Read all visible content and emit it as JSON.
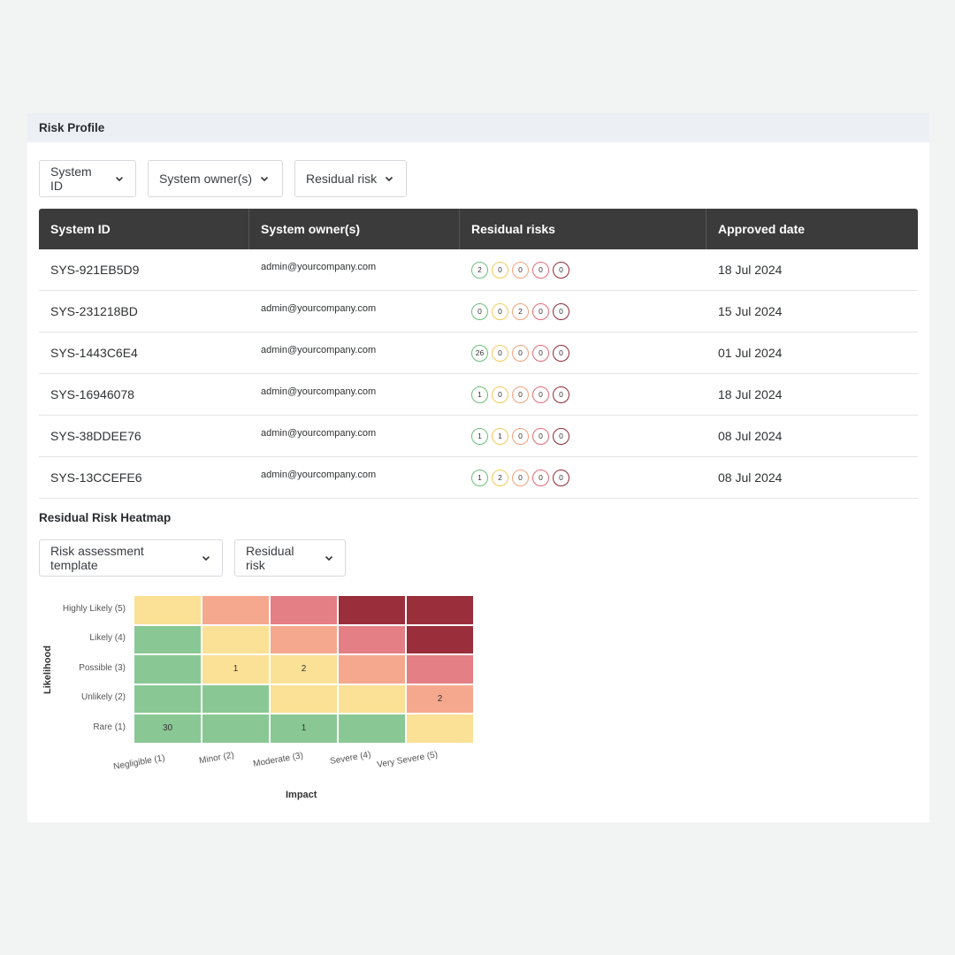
{
  "header": {
    "title": "Risk Profile"
  },
  "filters": [
    "System ID",
    "System owner(s)",
    "Residual risk"
  ],
  "table": {
    "columns": [
      "System ID",
      "System owner(s)",
      "Residual risks",
      "Approved date"
    ],
    "rows": [
      {
        "id": "SYS-921EB5D9",
        "owner": "admin@yourcompany.com",
        "risks": [
          "2",
          "0",
          "0",
          "0",
          "0"
        ],
        "date": "18 Jul 2024"
      },
      {
        "id": "SYS-231218BD",
        "owner": "admin@yourcompany.com",
        "risks": [
          "0",
          "0",
          "2",
          "0",
          "0"
        ],
        "date": "15 Jul 2024"
      },
      {
        "id": "SYS-1443C6E4",
        "owner": "admin@yourcompany.com",
        "risks": [
          "26",
          "0",
          "0",
          "0",
          "0"
        ],
        "date": "01 Jul 2024"
      },
      {
        "id": "SYS-16946078",
        "owner": "admin@yourcompany.com",
        "risks": [
          "1",
          "0",
          "0",
          "0",
          "0"
        ],
        "date": "18 Jul 2024"
      },
      {
        "id": "SYS-38DDEE76",
        "owner": "admin@yourcompany.com",
        "risks": [
          "1",
          "1",
          "0",
          "0",
          "0"
        ],
        "date": "08 Jul 2024"
      },
      {
        "id": "SYS-13CCEFE6",
        "owner": "admin@yourcompany.com",
        "risks": [
          "1",
          "2",
          "0",
          "0",
          "0"
        ],
        "date": "08 Jul 2024"
      }
    ]
  },
  "risk_colors": [
    "#6bbf7a",
    "#f3c95a",
    "#f2a07a",
    "#e06a78",
    "#8e2a34"
  ],
  "heatmap_section": {
    "title": "Residual Risk Heatmap",
    "filters": [
      "Risk assessment template",
      "Residual risk"
    ]
  },
  "chart_data": {
    "type": "heatmap",
    "xlabel": "Impact",
    "ylabel": "Likelihood",
    "x_categories": [
      "Negligible (1)",
      "Minor (2)",
      "Moderate (3)",
      "Severe (4)",
      "Very Severe (5)"
    ],
    "y_categories": [
      "Highly Likely (5)",
      "Likely (4)",
      "Possible (3)",
      "Unlikely (2)",
      "Rare (1)"
    ],
    "values": [
      [
        "",
        "",
        "",
        "",
        ""
      ],
      [
        "",
        "",
        "",
        "",
        ""
      ],
      [
        "",
        "1",
        "2",
        "",
        ""
      ],
      [
        "",
        "",
        "",
        "",
        "2"
      ],
      [
        "30",
        "",
        "1",
        "",
        ""
      ]
    ],
    "cell_colors": [
      [
        "#fbe196",
        "#f6a88f",
        "#e47f86",
        "#9a2e3a",
        "#9a2e3a"
      ],
      [
        "#89c895",
        "#fbe196",
        "#f6a88f",
        "#e47f86",
        "#9a2e3a"
      ],
      [
        "#89c895",
        "#fbe196",
        "#fbe196",
        "#f6a88f",
        "#e47f86"
      ],
      [
        "#89c895",
        "#89c895",
        "#fbe196",
        "#fbe196",
        "#f6a88f"
      ],
      [
        "#89c895",
        "#89c895",
        "#89c895",
        "#89c895",
        "#fbe196"
      ]
    ]
  }
}
